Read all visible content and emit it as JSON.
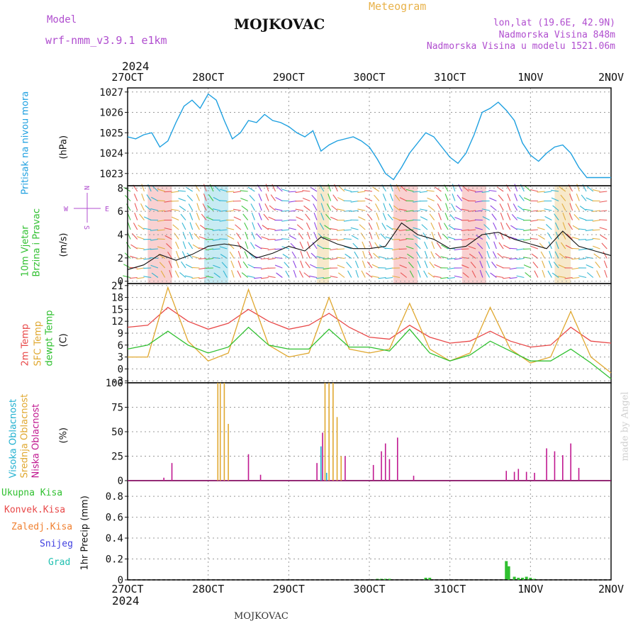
{
  "header": {
    "model_label": "Model",
    "model_name": "wrf-nmm_v3.9.1 e1km",
    "station": "MOJKOVAC",
    "meteogram": "Meteogram",
    "coords": "lon,lat (19.6E, 42.9N)",
    "elev": "Nadmorska Visina 848m",
    "elev_model": "Nadmorska Visina u modelu 1521.06m",
    "year_top": "2024",
    "year_bottom": "2024",
    "footer_station": "MOJKOVAC",
    "credit": "made by Angel"
  },
  "time_axis": {
    "labels": [
      "27OCT",
      "28OCT",
      "29OCT",
      "30OCT",
      "31OCT",
      "1NOV",
      "2NOV"
    ]
  },
  "panel_labels": {
    "pressure": {
      "name": "Pritisak na nivou mora",
      "unit": "(hPa)"
    },
    "wind": {
      "line1": "10m Vjetar",
      "line2": "Brzina i Pravac",
      "unit": "(m/s)",
      "compass_n": "N",
      "compass_s": "S",
      "compass_w": "W",
      "compass_e": "E"
    },
    "temp": {
      "l1": "2m Temp",
      "l2": "SFC Temp",
      "l3": "dewpt Temp",
      "unit": "(C)"
    },
    "cloud": {
      "l1": "Visoka Oblacnost",
      "l2": "Srednja Oblacnost",
      "l3": "Niska Oblacnost",
      "unit": "(%)"
    },
    "precip": {
      "l1": "Ukupna Kisa",
      "l2": "Konvek.Kisa",
      "l3": "Zaledj.Kisa",
      "l4": "Snijeg",
      "l5": "Grad",
      "unit": "1hr Precip (mm)"
    }
  },
  "colors": {
    "pressure": "#1ea0e0",
    "temp2m": "#e84848",
    "sfc": "#e0a830",
    "dew": "#30c030",
    "high_cloud": "#20b0d0",
    "mid_cloud": "#e0a830",
    "low_cloud": "#c01890",
    "precip": "#30c030",
    "violet": "#b04ecf"
  },
  "chart_data": [
    {
      "type": "line",
      "name": "pressure",
      "ylim": [
        1022.4,
        1027.2
      ],
      "yticks": [
        "1023",
        "1024",
        "1025",
        "1026",
        "1027"
      ],
      "x": [
        0,
        0.1,
        0.2,
        0.3,
        0.4,
        0.5,
        0.6,
        0.7,
        0.8,
        0.9,
        1,
        1.1,
        1.2,
        1.3,
        1.4,
        1.5,
        1.6,
        1.7,
        1.8,
        1.9,
        2,
        2.1,
        2.2,
        2.3,
        2.4,
        2.5,
        2.6,
        2.7,
        2.8,
        2.9,
        3,
        3.1,
        3.2,
        3.3,
        3.4,
        3.5,
        3.6,
        3.7,
        3.8,
        3.9,
        4,
        4.1,
        4.2,
        4.3,
        4.4,
        4.5,
        4.6,
        4.7,
        4.8,
        4.9,
        5,
        5.1,
        5.2,
        5.3,
        5.4,
        5.5,
        5.6,
        5.7,
        5.8,
        5.9,
        6
      ],
      "y": [
        1024.8,
        1024.7,
        1024.9,
        1025.0,
        1024.3,
        1024.6,
        1025.5,
        1026.3,
        1026.6,
        1026.2,
        1026.9,
        1026.6,
        1025.6,
        1024.7,
        1025.0,
        1025.6,
        1025.5,
        1025.9,
        1025.6,
        1025.5,
        1025.3,
        1025.0,
        1024.8,
        1025.1,
        1024.1,
        1024.4,
        1024.6,
        1024.7,
        1024.8,
        1024.6,
        1024.3,
        1023.7,
        1023.0,
        1022.7,
        1023.3,
        1024.0,
        1024.5,
        1025.0,
        1024.8,
        1024.3,
        1023.8,
        1023.5,
        1024.0,
        1024.9,
        1026.0,
        1026.2,
        1026.5,
        1026.1,
        1025.6,
        1024.5,
        1023.9,
        1023.6,
        1024.0,
        1024.3,
        1024.4,
        1024.0,
        1023.3,
        1022.8,
        1022.8,
        1022.8,
        1022.8
      ]
    },
    {
      "type": "line",
      "name": "wind",
      "ylim": [
        -0.2,
        8.2
      ],
      "yticks": [
        "0",
        "2",
        "4",
        "6",
        "8"
      ],
      "x": [
        0,
        0.2,
        0.4,
        0.6,
        0.8,
        1,
        1.2,
        1.4,
        1.6,
        1.8,
        2,
        2.2,
        2.4,
        2.6,
        2.8,
        3,
        3.2,
        3.4,
        3.6,
        3.8,
        4,
        4.2,
        4.4,
        4.6,
        4.8,
        5,
        5.2,
        5.4,
        5.6,
        5.8,
        6
      ],
      "y": [
        1.0,
        1.4,
        2.3,
        1.8,
        2.3,
        3.0,
        3.2,
        3.0,
        2.0,
        2.4,
        3.0,
        2.6,
        3.8,
        3.2,
        2.8,
        2.8,
        3.0,
        5.0,
        4.0,
        3.6,
        2.8,
        3.0,
        4.0,
        4.2,
        3.6,
        3.2,
        2.8,
        4.3,
        3.0,
        2.6,
        2.2
      ]
    },
    {
      "type": "line",
      "name": "temperature",
      "ylim": [
        -3.5,
        21.5
      ],
      "yticks": [
        "-3",
        "0",
        "3",
        "6",
        "9",
        "12",
        "15",
        "18",
        "21"
      ],
      "x": [
        0,
        0.25,
        0.5,
        0.75,
        1,
        1.25,
        1.5,
        1.75,
        2,
        2.25,
        2.5,
        2.75,
        3,
        3.25,
        3.5,
        3.75,
        4,
        4.25,
        4.5,
        4.75,
        5,
        5.25,
        5.5,
        5.75,
        6
      ],
      "series": [
        {
          "name": "2m Temp",
          "values": [
            10.5,
            11.0,
            15.5,
            12.0,
            10.0,
            11.5,
            15.0,
            12.0,
            10.0,
            11.0,
            14.0,
            10.5,
            8.0,
            7.5,
            11.0,
            8.0,
            6.5,
            7.0,
            9.5,
            7.0,
            5.5,
            6.0,
            10.5,
            7.0,
            6.5
          ]
        },
        {
          "name": "SFC Temp",
          "values": [
            3.0,
            3.0,
            20.5,
            7.0,
            2.0,
            4.0,
            20.0,
            6.0,
            3.0,
            4.0,
            18.0,
            5.0,
            4.0,
            5.0,
            16.5,
            5.0,
            2.0,
            4.0,
            15.5,
            5.0,
            1.5,
            3.0,
            14.5,
            3.0,
            -1.0
          ]
        },
        {
          "name": "dewpt Temp",
          "values": [
            5.0,
            6.0,
            9.5,
            6.0,
            4.0,
            5.5,
            10.5,
            6.0,
            5.0,
            5.0,
            10.0,
            5.5,
            5.5,
            4.5,
            10.0,
            4.0,
            2.0,
            3.5,
            7.0,
            4.5,
            2.0,
            2.0,
            5.0,
            1.5,
            -2.5
          ]
        }
      ]
    },
    {
      "type": "bar",
      "name": "cloud",
      "ylim": [
        0,
        100
      ],
      "yticks": [
        "0",
        "25",
        "50",
        "75",
        "100"
      ],
      "series": [
        {
          "name": "Srednja Oblacnost",
          "x": [
            1.12,
            1.15,
            1.2,
            1.25,
            2.45,
            2.5,
            2.55,
            2.6,
            2.65
          ],
          "values": [
            100,
            100,
            100,
            58,
            100,
            100,
            100,
            65,
            25
          ]
        },
        {
          "name": "Niska Oblacnost",
          "x": [
            0.45,
            0.55,
            1.5,
            1.65,
            2.35,
            2.42,
            2.7,
            3.05,
            3.15,
            3.2,
            3.25,
            3.35,
            3.55,
            4.7,
            4.8,
            4.85,
            4.95,
            5.05,
            5.2,
            5.3,
            5.4,
            5.5,
            5.6
          ],
          "values": [
            3,
            18,
            27,
            6,
            18,
            49,
            25,
            16,
            30,
            38,
            22,
            44,
            5,
            10,
            9,
            12,
            9,
            8,
            33,
            30,
            26,
            38,
            13
          ]
        },
        {
          "name": "Visoka Oblacnost",
          "x": [
            2.4,
            2.47
          ],
          "values": [
            35,
            8
          ]
        }
      ]
    },
    {
      "type": "bar",
      "name": "precip",
      "ylim": [
        0,
        0.95
      ],
      "yticks": [
        "0",
        "0.2",
        "0.4",
        "0.6",
        "0.8"
      ],
      "series": [
        {
          "name": "Ukupna Kisa",
          "x": [
            3.1,
            3.15,
            3.2,
            3.25,
            3.7,
            3.75,
            4.7,
            4.73,
            4.8,
            4.85,
            4.9,
            4.95,
            5.0,
            5.05
          ],
          "values": [
            0.01,
            0.01,
            0.01,
            0.01,
            0.02,
            0.02,
            0.18,
            0.13,
            0.03,
            0.02,
            0.02,
            0.03,
            0.02,
            0.01
          ]
        }
      ]
    }
  ]
}
